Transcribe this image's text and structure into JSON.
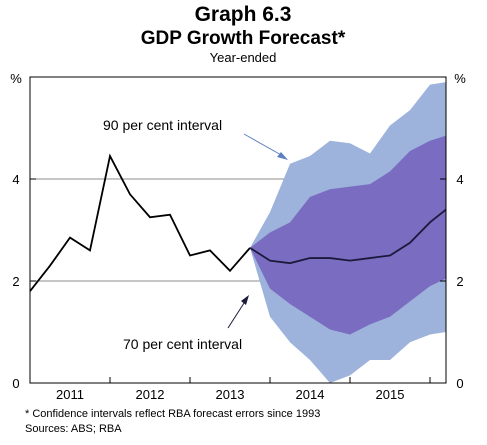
{
  "chart_data": {
    "type": "line",
    "title": "Graph 6.3",
    "subtitle": "GDP Growth Forecast*",
    "note": "Year-ended",
    "unit_left": "%",
    "unit_right": "%",
    "ylim": [
      0,
      6
    ],
    "yticks": [
      0,
      2,
      4
    ],
    "xlim": [
      2010.5,
      2015.7
    ],
    "xtick_labels": [
      "2011",
      "2012",
      "2013",
      "2014",
      "2015"
    ],
    "xtick_centers": [
      2011,
      2012,
      2013,
      2014,
      2015
    ],
    "year_boundaries": [
      2011.5,
      2012.5,
      2013.5,
      2014.5,
      2015.5
    ],
    "grid": true,
    "series": [
      {
        "name": "",
        "color": "#000000",
        "x": [
          2010.5,
          2010.75,
          2011.0,
          2011.25,
          2011.5,
          2011.75,
          2012.0,
          2012.25,
          2012.5,
          2012.75,
          2013.0,
          2013.25
        ],
        "y": [
          1.8,
          2.3,
          2.85,
          2.6,
          4.45,
          3.7,
          3.25,
          3.3,
          2.5,
          2.6,
          2.2,
          2.65
        ]
      },
      {
        "name": "",
        "color": "#1c1a3c",
        "x": [
          2013.25,
          2013.5,
          2013.75,
          2014.0,
          2014.25,
          2014.5,
          2014.75,
          2015.0,
          2015.25,
          2015.5,
          2015.75
        ],
        "y": [
          2.65,
          2.4,
          2.35,
          2.45,
          2.45,
          2.4,
          2.45,
          2.5,
          2.75,
          3.15,
          3.4
        ]
      }
    ],
    "bands": [
      {
        "name": "90 per cent interval",
        "color": "#9db3dc",
        "x": [
          2013.25,
          2013.5,
          2013.75,
          2014.0,
          2014.25,
          2014.5,
          2014.75,
          2015.0,
          2015.25,
          2015.5,
          2015.75
        ],
        "upper": [
          2.65,
          3.35,
          4.3,
          4.45,
          4.75,
          4.7,
          4.5,
          5.05,
          5.35,
          5.85,
          5.9
        ],
        "lower": [
          2.65,
          1.3,
          0.8,
          0.45,
          0.0,
          0.15,
          0.45,
          0.45,
          0.8,
          0.95,
          1.0
        ]
      },
      {
        "name": "70 per cent interval",
        "color": "#7a6cc0",
        "x": [
          2013.25,
          2013.5,
          2013.75,
          2014.0,
          2014.25,
          2014.5,
          2014.75,
          2015.0,
          2015.25,
          2015.5,
          2015.75
        ],
        "upper": [
          2.65,
          2.95,
          3.15,
          3.65,
          3.8,
          3.85,
          3.9,
          4.15,
          4.55,
          4.75,
          4.85
        ],
        "lower": [
          2.65,
          1.85,
          1.55,
          1.3,
          1.05,
          0.95,
          1.15,
          1.3,
          1.6,
          1.9,
          2.05
        ]
      }
    ],
    "annotations": [
      {
        "text": "90 per cent interval",
        "color": "#5d7fc0"
      },
      {
        "text": "70 per cent interval",
        "color": "#ffffff"
      }
    ],
    "footnote": "*    Confidence intervals reflect RBA forecast errors since 1993",
    "sources": "Sources: ABS; RBA"
  }
}
